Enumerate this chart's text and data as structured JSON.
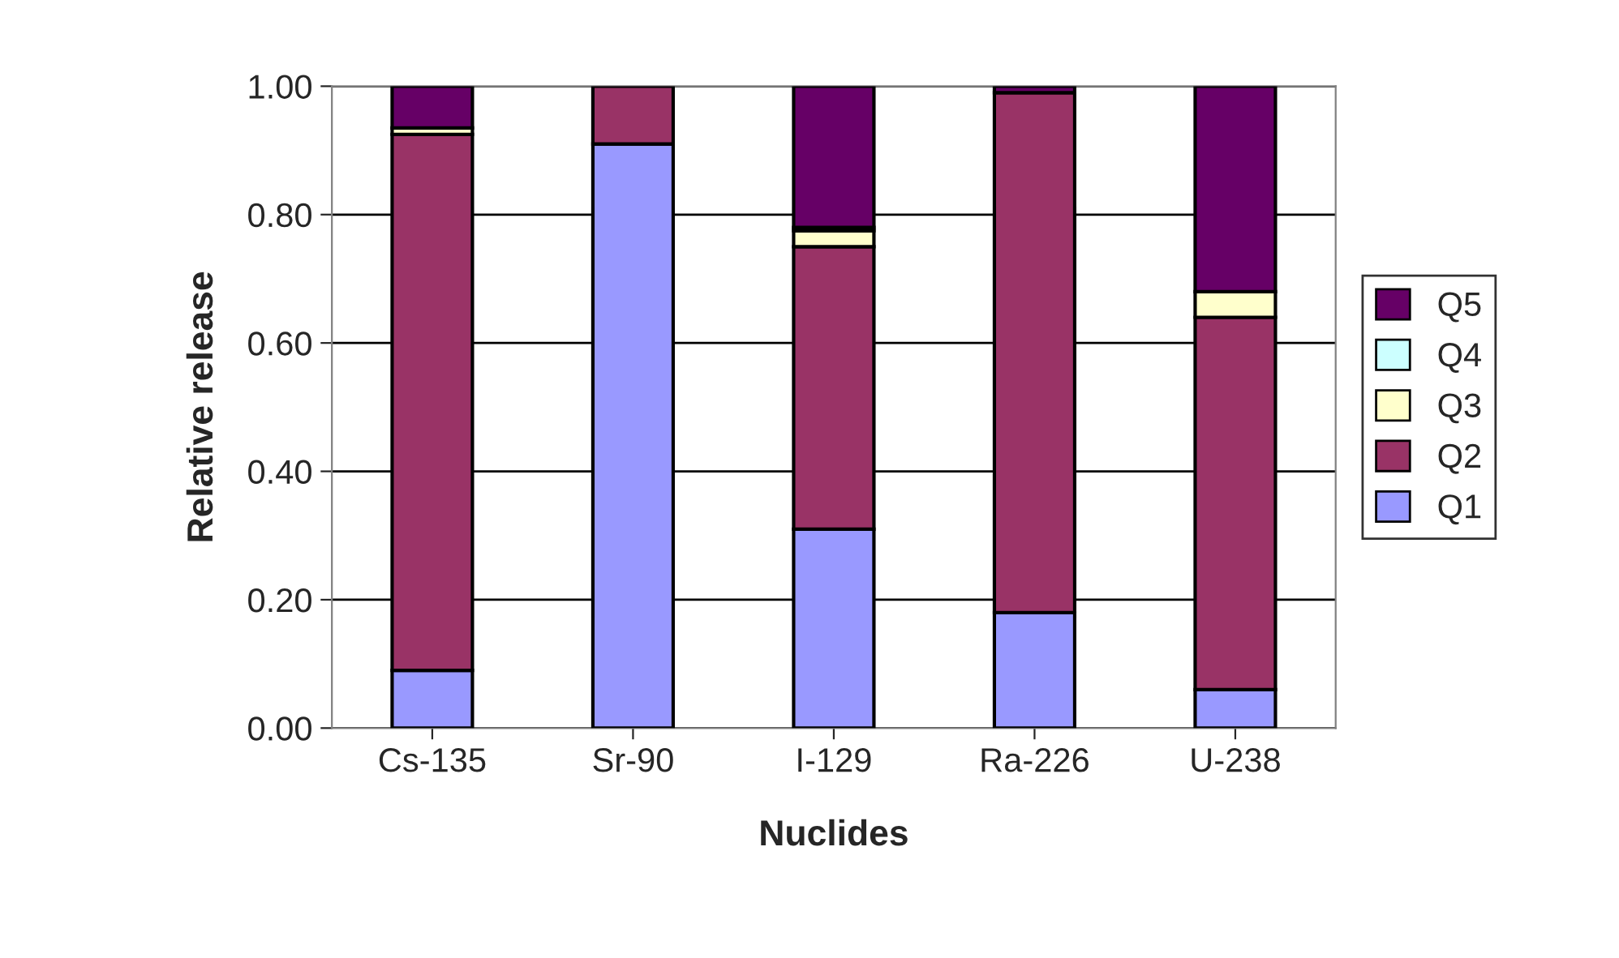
{
  "chart_data": {
    "type": "bar",
    "stacked": true,
    "xlabel": "Nuclides",
    "ylabel": "Relative release",
    "categories": [
      "Cs-135",
      "Sr-90",
      "I-129",
      "Ra-226",
      "U-238"
    ],
    "series": [
      {
        "name": "Q1",
        "color": "#9999ff",
        "values": [
          0.09,
          0.91,
          0.31,
          0.18,
          0.06
        ]
      },
      {
        "name": "Q2",
        "color": "#993366",
        "values": [
          0.835,
          0.09,
          0.44,
          0.81,
          0.58
        ]
      },
      {
        "name": "Q3",
        "color": "#ffffcc",
        "values": [
          0.01,
          0,
          0.025,
          0,
          0.04
        ]
      },
      {
        "name": "Q4",
        "color": "#ccffff",
        "values": [
          0,
          0,
          0.005,
          0,
          0
        ]
      },
      {
        "name": "Q5",
        "color": "#660066",
        "values": [
          0.065,
          0,
          0.22,
          0.01,
          0.32
        ]
      }
    ],
    "ylim": [
      0,
      1
    ],
    "yticks": [
      {
        "value": 0,
        "label": "0.00"
      },
      {
        "value": 0.2,
        "label": "0.20"
      },
      {
        "value": 0.4,
        "label": "0.40"
      },
      {
        "value": 0.6,
        "label": "0.60"
      },
      {
        "value": 0.8,
        "label": "0.80"
      },
      {
        "value": 1,
        "label": "1.00"
      }
    ],
    "grid": "y",
    "legend": "right"
  }
}
